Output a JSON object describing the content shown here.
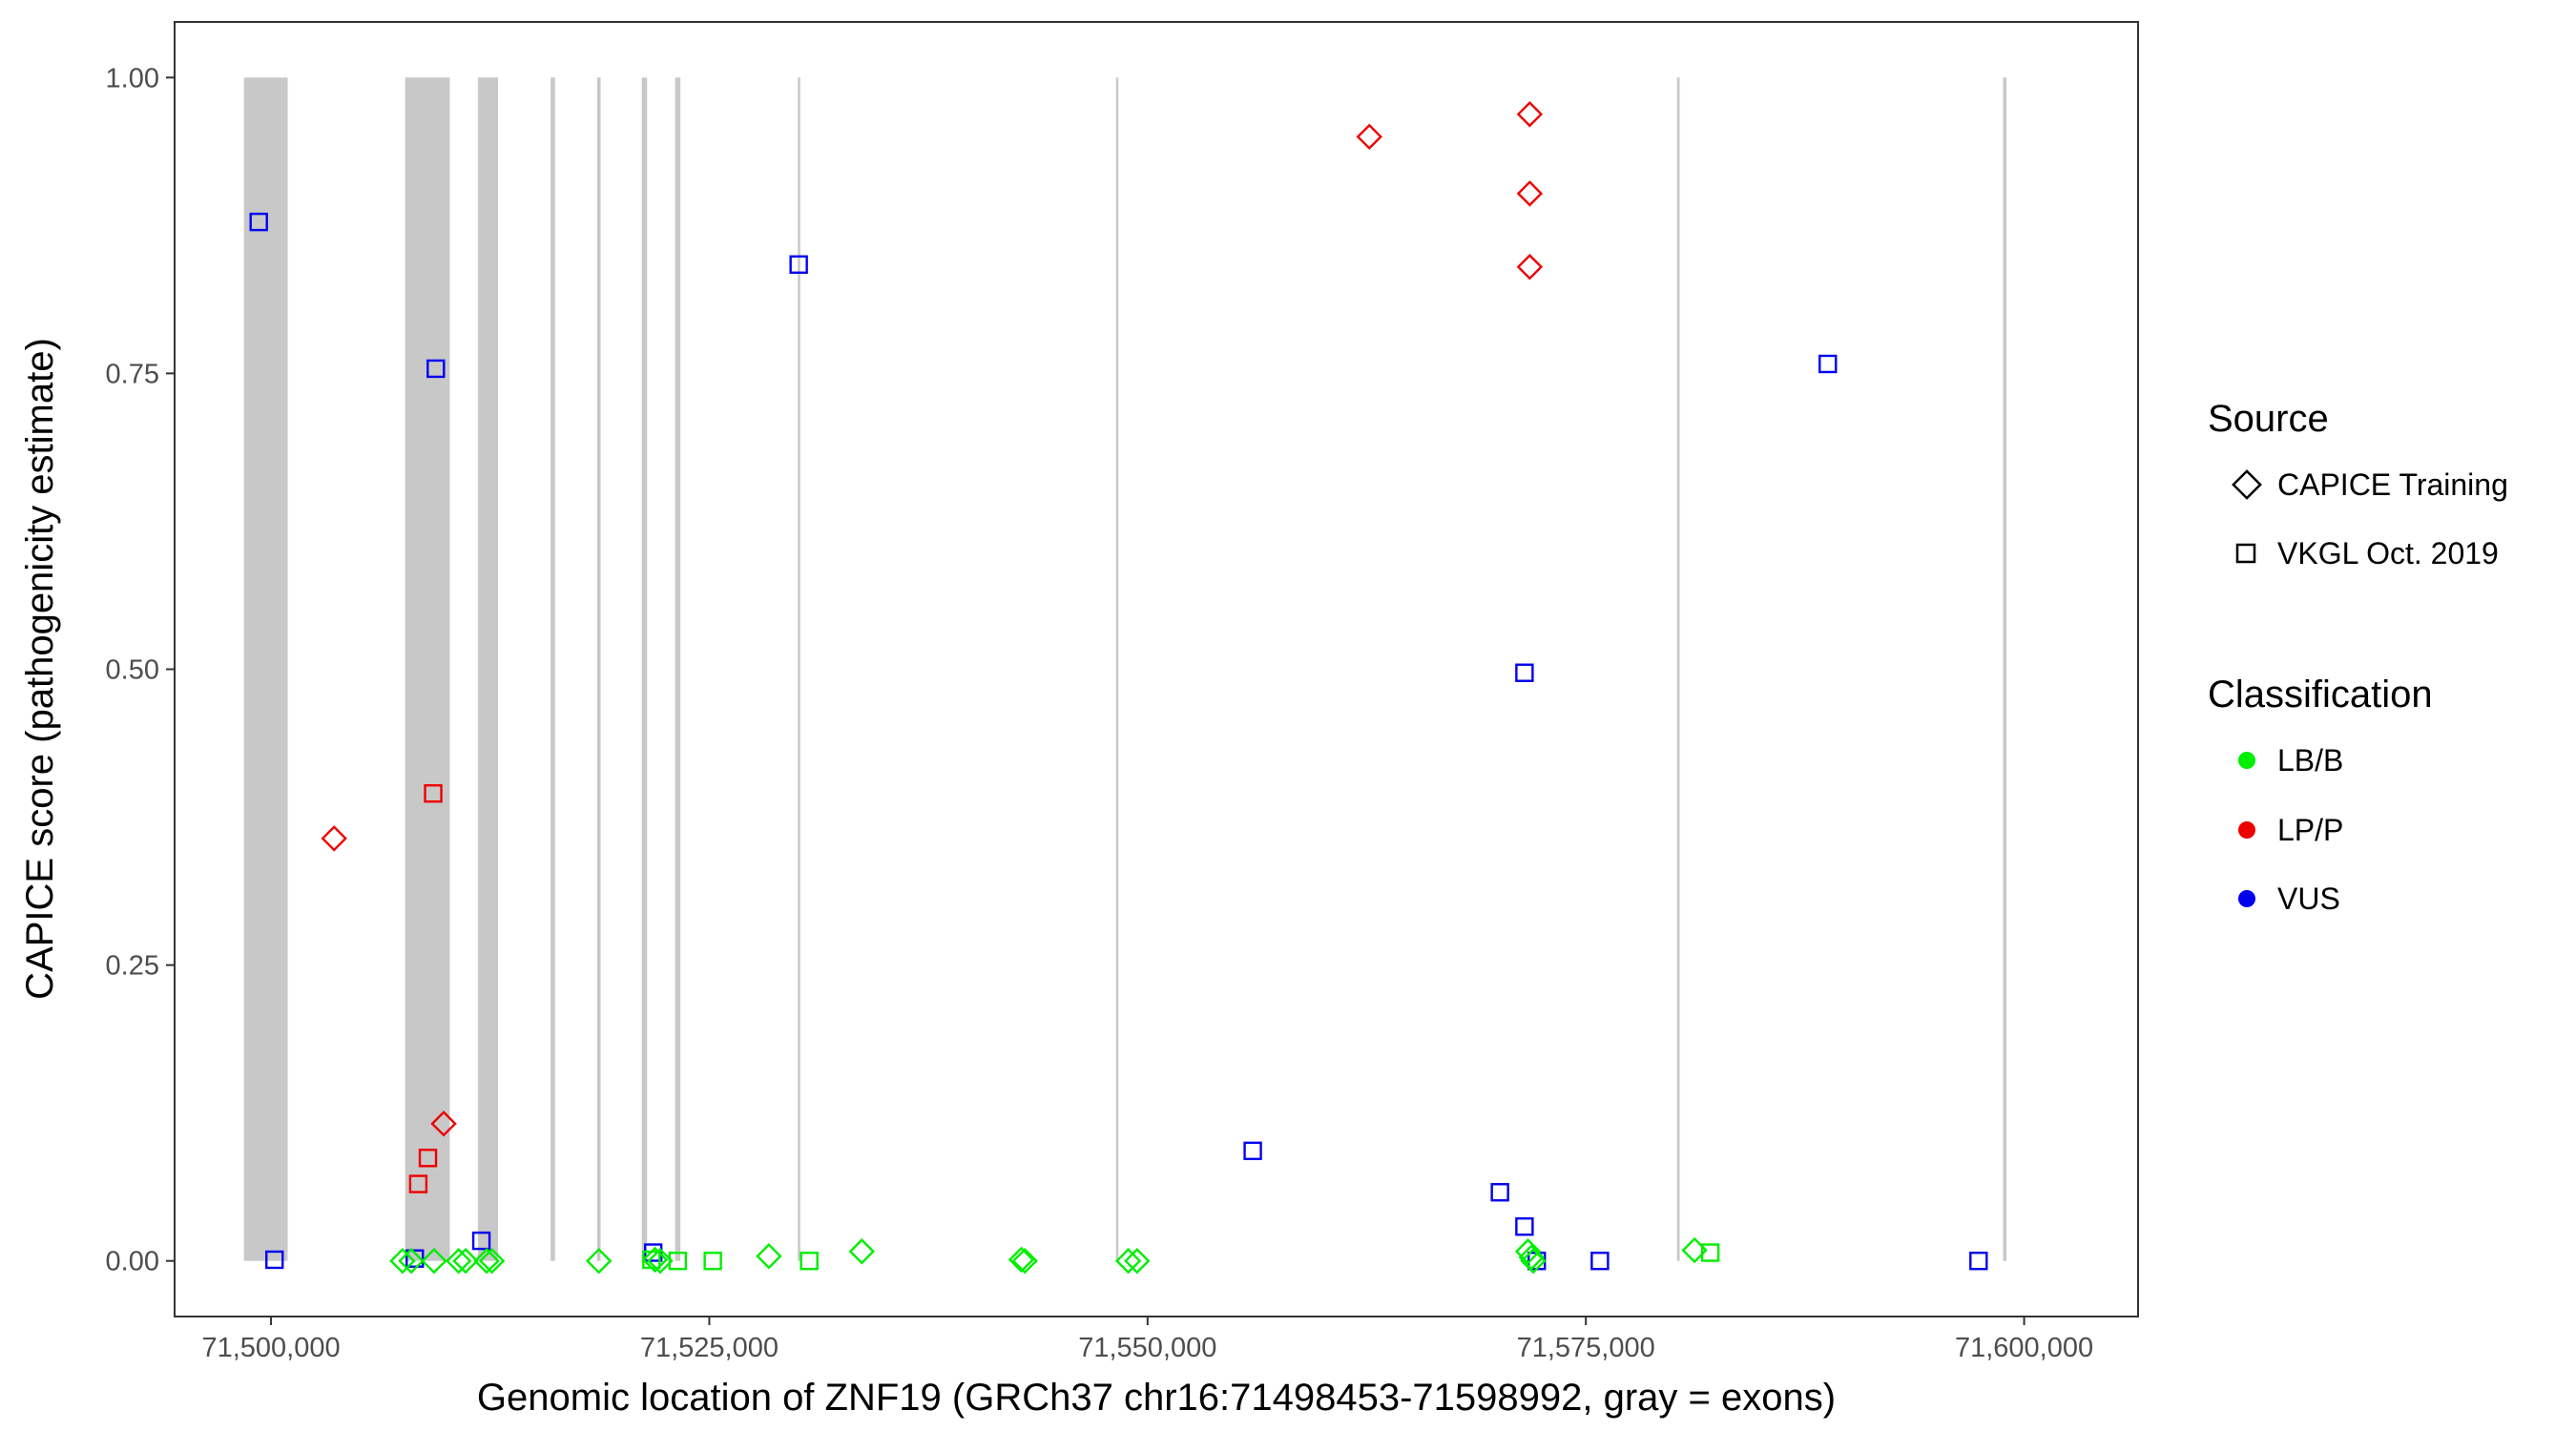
{
  "chart_data": {
    "type": "scatter",
    "title": "",
    "xlabel": "Genomic location of ZNF19 (GRCh37 chr16:71498453-71598992, gray = exons)",
    "ylabel": "CAPICE score (pathogenicity estimate)",
    "xlim": [
      71494500,
      71606500
    ],
    "ylim": [
      -0.047,
      1.047
    ],
    "x_ticks": [
      71500000,
      71525000,
      71550000,
      71575000,
      71600000
    ],
    "x_tick_labels": [
      "71,500,000",
      "71,525,000",
      "71,550,000",
      "71,575,000",
      "71,600,000"
    ],
    "y_ticks": [
      0,
      0.25,
      0.5,
      0.75,
      1.0
    ],
    "y_tick_labels": [
      "0.00",
      "0.25",
      "0.50",
      "0.75",
      "1.00"
    ],
    "grid": false,
    "exon_color": "#c8c8c8",
    "exons": [
      [
        71498453,
        71500950
      ],
      [
        71507650,
        71510200
      ],
      [
        71511800,
        71512950
      ],
      [
        71515950,
        71516200
      ],
      [
        71518600,
        71518800
      ],
      [
        71521150,
        71521450
      ],
      [
        71523050,
        71523350
      ],
      [
        71530050,
        71530150
      ],
      [
        71548200,
        71548300
      ],
      [
        71580200,
        71580350
      ],
      [
        71598800,
        71598992
      ]
    ],
    "legend": {
      "placement": "right",
      "source": {
        "title": "Source",
        "items": [
          {
            "label": "CAPICE Training",
            "shape": "diamond"
          },
          {
            "label": "VKGL Oct. 2019",
            "shape": "square"
          }
        ]
      },
      "classification": {
        "title": "Classification",
        "items": [
          {
            "label": "LB/B",
            "color": "#00ee00"
          },
          {
            "label": "LP/P",
            "color": "#ee0000"
          },
          {
            "label": "VUS",
            "color": "#0000ee"
          }
        ]
      }
    },
    "series": [
      {
        "source": "CAPICE Training",
        "classification": "LP/P",
        "points": [
          [
            71503600,
            0.357
          ],
          [
            71509850,
            0.116
          ],
          [
            71562650,
            0.95
          ],
          [
            71571800,
            0.969
          ],
          [
            71571800,
            0.902
          ],
          [
            71571800,
            0.84
          ]
        ]
      },
      {
        "source": "VKGL Oct. 2019",
        "classification": "LP/P",
        "points": [
          [
            71509250,
            0.395
          ],
          [
            71508950,
            0.087
          ],
          [
            71508400,
            0.065
          ]
        ]
      },
      {
        "source": "VKGL Oct. 2019",
        "classification": "VUS",
        "points": [
          [
            71499300,
            0.878
          ],
          [
            71500200,
            0.001
          ],
          [
            71509400,
            0.754
          ],
          [
            71508200,
            0.002
          ],
          [
            71512000,
            0.017
          ],
          [
            71521800,
            0.007
          ],
          [
            71530100,
            0.842
          ],
          [
            71556000,
            0.093
          ],
          [
            71570100,
            0.058
          ],
          [
            71571500,
            0.497
          ],
          [
            71571500,
            0.029
          ],
          [
            71572200,
            0.0
          ],
          [
            71575800,
            0.0
          ],
          [
            71588800,
            0.758
          ],
          [
            71597400,
            0.0
          ]
        ]
      },
      {
        "source": "CAPICE Training",
        "classification": "LB/B",
        "points": [
          [
            71507500,
            0.0
          ],
          [
            71508000,
            0.0
          ],
          [
            71509300,
            0.0
          ],
          [
            71510700,
            0.0
          ],
          [
            71511100,
            0.0
          ],
          [
            71512300,
            0.0
          ],
          [
            71512600,
            0.0
          ],
          [
            71518700,
            0.0
          ],
          [
            71521900,
            0.001
          ],
          [
            71522200,
            0.0
          ],
          [
            71528400,
            0.004
          ],
          [
            71533700,
            0.008
          ],
          [
            71542800,
            0.001
          ],
          [
            71543000,
            0.0
          ],
          [
            71548900,
            0.0
          ],
          [
            71549400,
            0.0
          ],
          [
            71571700,
            0.008
          ],
          [
            71571900,
            0.003
          ],
          [
            71572000,
            0.0
          ],
          [
            71581200,
            0.009
          ]
        ]
      },
      {
        "source": "VKGL Oct. 2019",
        "classification": "LB/B",
        "points": [
          [
            71521700,
            0.001
          ],
          [
            71523200,
            0.0
          ],
          [
            71525200,
            0.0
          ],
          [
            71530700,
            0.0
          ],
          [
            71582100,
            0.007
          ]
        ]
      }
    ]
  }
}
